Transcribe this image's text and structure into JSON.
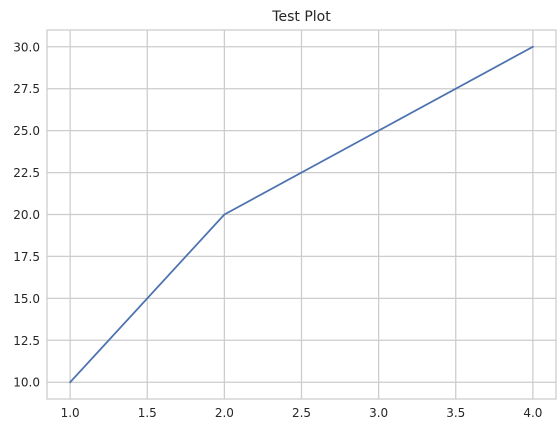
{
  "chart_data": {
    "type": "line",
    "title": "Test Plot",
    "xlabel": "",
    "ylabel": "",
    "x": [
      1,
      2,
      3,
      4
    ],
    "series": [
      {
        "values": [
          10,
          20,
          25,
          30
        ]
      }
    ],
    "xlim": [
      0.85,
      4.15
    ],
    "ylim": [
      9.0,
      31.0
    ],
    "x_ticks": [
      "1.0",
      "1.5",
      "2.0",
      "2.5",
      "3.0",
      "3.5",
      "4.0"
    ],
    "y_ticks": [
      "10.0",
      "12.5",
      "15.0",
      "17.5",
      "20.0",
      "22.5",
      "25.0",
      "27.5",
      "30.0"
    ],
    "grid": true,
    "legend": "none",
    "colors": {
      "line": "#4c72b0",
      "grid": "#cccccc",
      "spine": "#cccccc",
      "text": "#262626",
      "background": "#ffffff"
    }
  }
}
